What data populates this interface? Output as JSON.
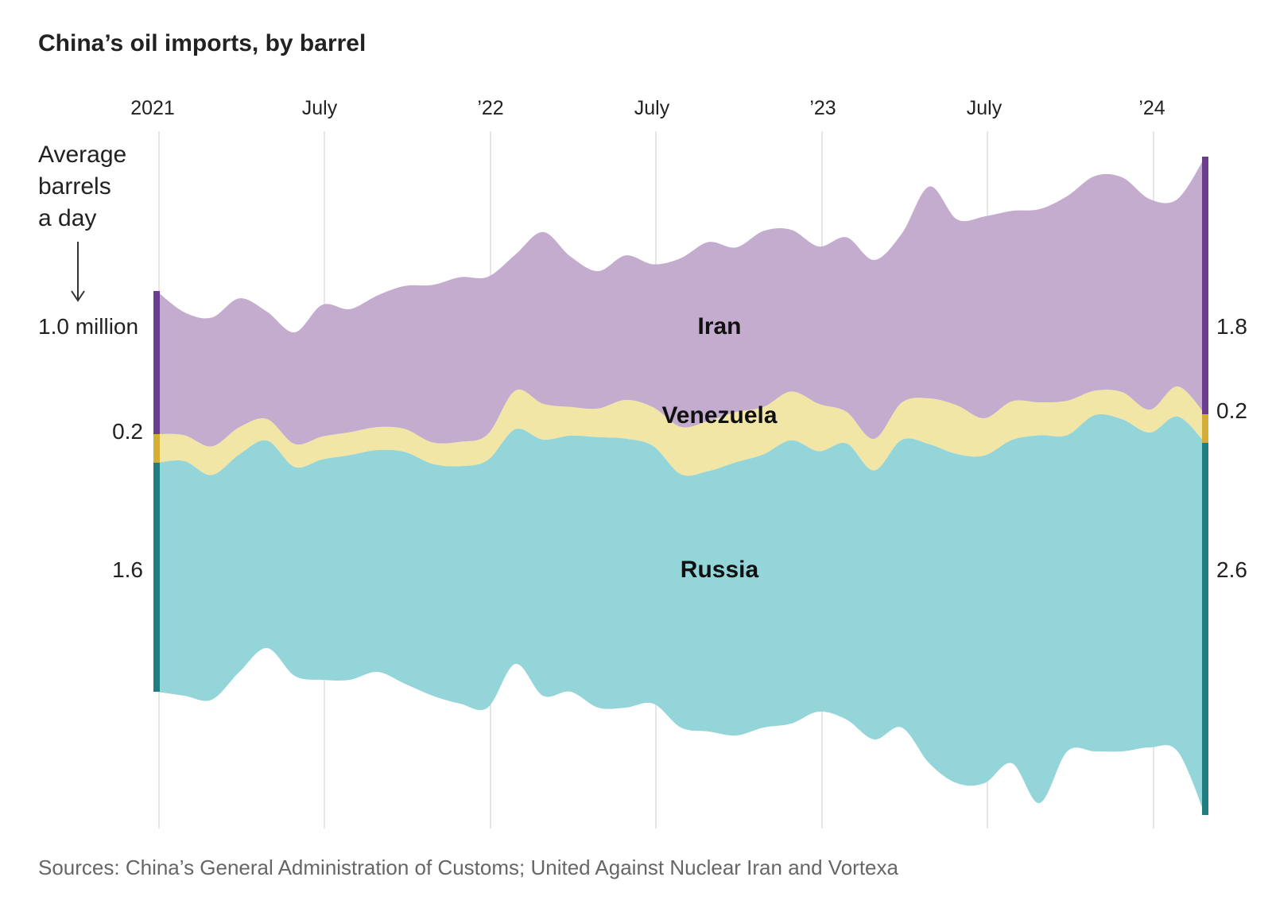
{
  "title": "China’s oil imports, by barrel",
  "unit_label": [
    "Average",
    "barrels",
    "a day"
  ],
  "source": "Sources: China’s General Administration of Customs; United Against Nuclear Iran and Vortexa",
  "x_ticks": [
    "2021",
    "July",
    "’22",
    "July",
    "’23",
    "July",
    "’24"
  ],
  "start_values": {
    "iran": "1.0 million",
    "venezuela": "0.2",
    "russia": "1.6"
  },
  "end_values": {
    "iran": "1.8",
    "venezuela": "0.2",
    "russia": "2.6"
  },
  "colors": {
    "iran_fill": "#c4accf",
    "iran_edge": "#6a3d8f",
    "venezuela_fill": "#f2e6a7",
    "venezuela_edge": "#d4af37",
    "russia_fill": "#93d5d9",
    "russia_edge": "#1f7f80",
    "grid": "#e6e6e6"
  },
  "chart_data": {
    "type": "area",
    "subtype": "streamgraph",
    "title": "China’s oil imports, by barrel",
    "ylabel": "Average barrels a day",
    "x_start": "2021-01",
    "x_end": "2024-03",
    "x_ticks": [
      "2021",
      "July",
      "’22",
      "July",
      "’23",
      "July",
      "’24"
    ],
    "x": [
      "2021-01",
      "2021-02",
      "2021-03",
      "2021-04",
      "2021-05",
      "2021-06",
      "2021-07",
      "2021-08",
      "2021-09",
      "2021-10",
      "2021-11",
      "2021-12",
      "2022-01",
      "2022-02",
      "2022-03",
      "2022-04",
      "2022-05",
      "2022-06",
      "2022-07",
      "2022-08",
      "2022-09",
      "2022-10",
      "2022-11",
      "2022-12",
      "2023-01",
      "2023-02",
      "2023-03",
      "2023-04",
      "2023-05",
      "2023-06",
      "2023-07",
      "2023-08",
      "2023-09",
      "2023-10",
      "2023-11",
      "2023-12",
      "2024-01",
      "2024-02",
      "2024-03"
    ],
    "series": [
      {
        "name": "Russia",
        "values": [
          1.6,
          1.64,
          1.57,
          1.52,
          1.45,
          1.46,
          1.54,
          1.57,
          1.55,
          1.62,
          1.62,
          1.66,
          1.73,
          1.64,
          1.79,
          1.79,
          1.89,
          1.88,
          1.8,
          1.77,
          1.82,
          1.91,
          1.91,
          1.98,
          1.82,
          1.93,
          1.88,
          2.01,
          2.23,
          2.3,
          2.29,
          2.26,
          2.57,
          2.21,
          2.35,
          2.32,
          2.2,
          2.34,
          2.6
        ]
      },
      {
        "name": "Venezuela",
        "values": [
          0.2,
          0.18,
          0.2,
          0.19,
          0.15,
          0.16,
          0.16,
          0.16,
          0.16,
          0.16,
          0.15,
          0.17,
          0.18,
          0.27,
          0.25,
          0.2,
          0.2,
          0.27,
          0.27,
          0.33,
          0.35,
          0.35,
          0.33,
          0.34,
          0.33,
          0.22,
          0.22,
          0.26,
          0.32,
          0.34,
          0.26,
          0.27,
          0.23,
          0.24,
          0.17,
          0.19,
          0.16,
          0.21,
          0.2
        ]
      },
      {
        "name": "Iran",
        "values": [
          1.0,
          0.86,
          0.9,
          0.9,
          0.75,
          0.78,
          0.92,
          0.86,
          0.92,
          1.0,
          1.1,
          1.15,
          1.1,
          0.95,
          1.2,
          1.05,
          0.96,
          1.01,
          1.0,
          1.18,
          1.25,
          1.15,
          1.23,
          1.13,
          1.1,
          1.22,
          1.25,
          1.18,
          1.48,
          1.3,
          1.41,
          1.33,
          1.35,
          1.43,
          1.5,
          1.5,
          1.47,
          1.31,
          1.8
        ]
      }
    ],
    "start_labels": {
      "Iran": "1.0 million",
      "Venezuela": "0.2",
      "Russia": "1.6"
    },
    "end_labels": {
      "Iran": "1.8",
      "Venezuela": "0.2",
      "Russia": "2.6"
    },
    "grid": true,
    "legend": "inline labels in center"
  }
}
